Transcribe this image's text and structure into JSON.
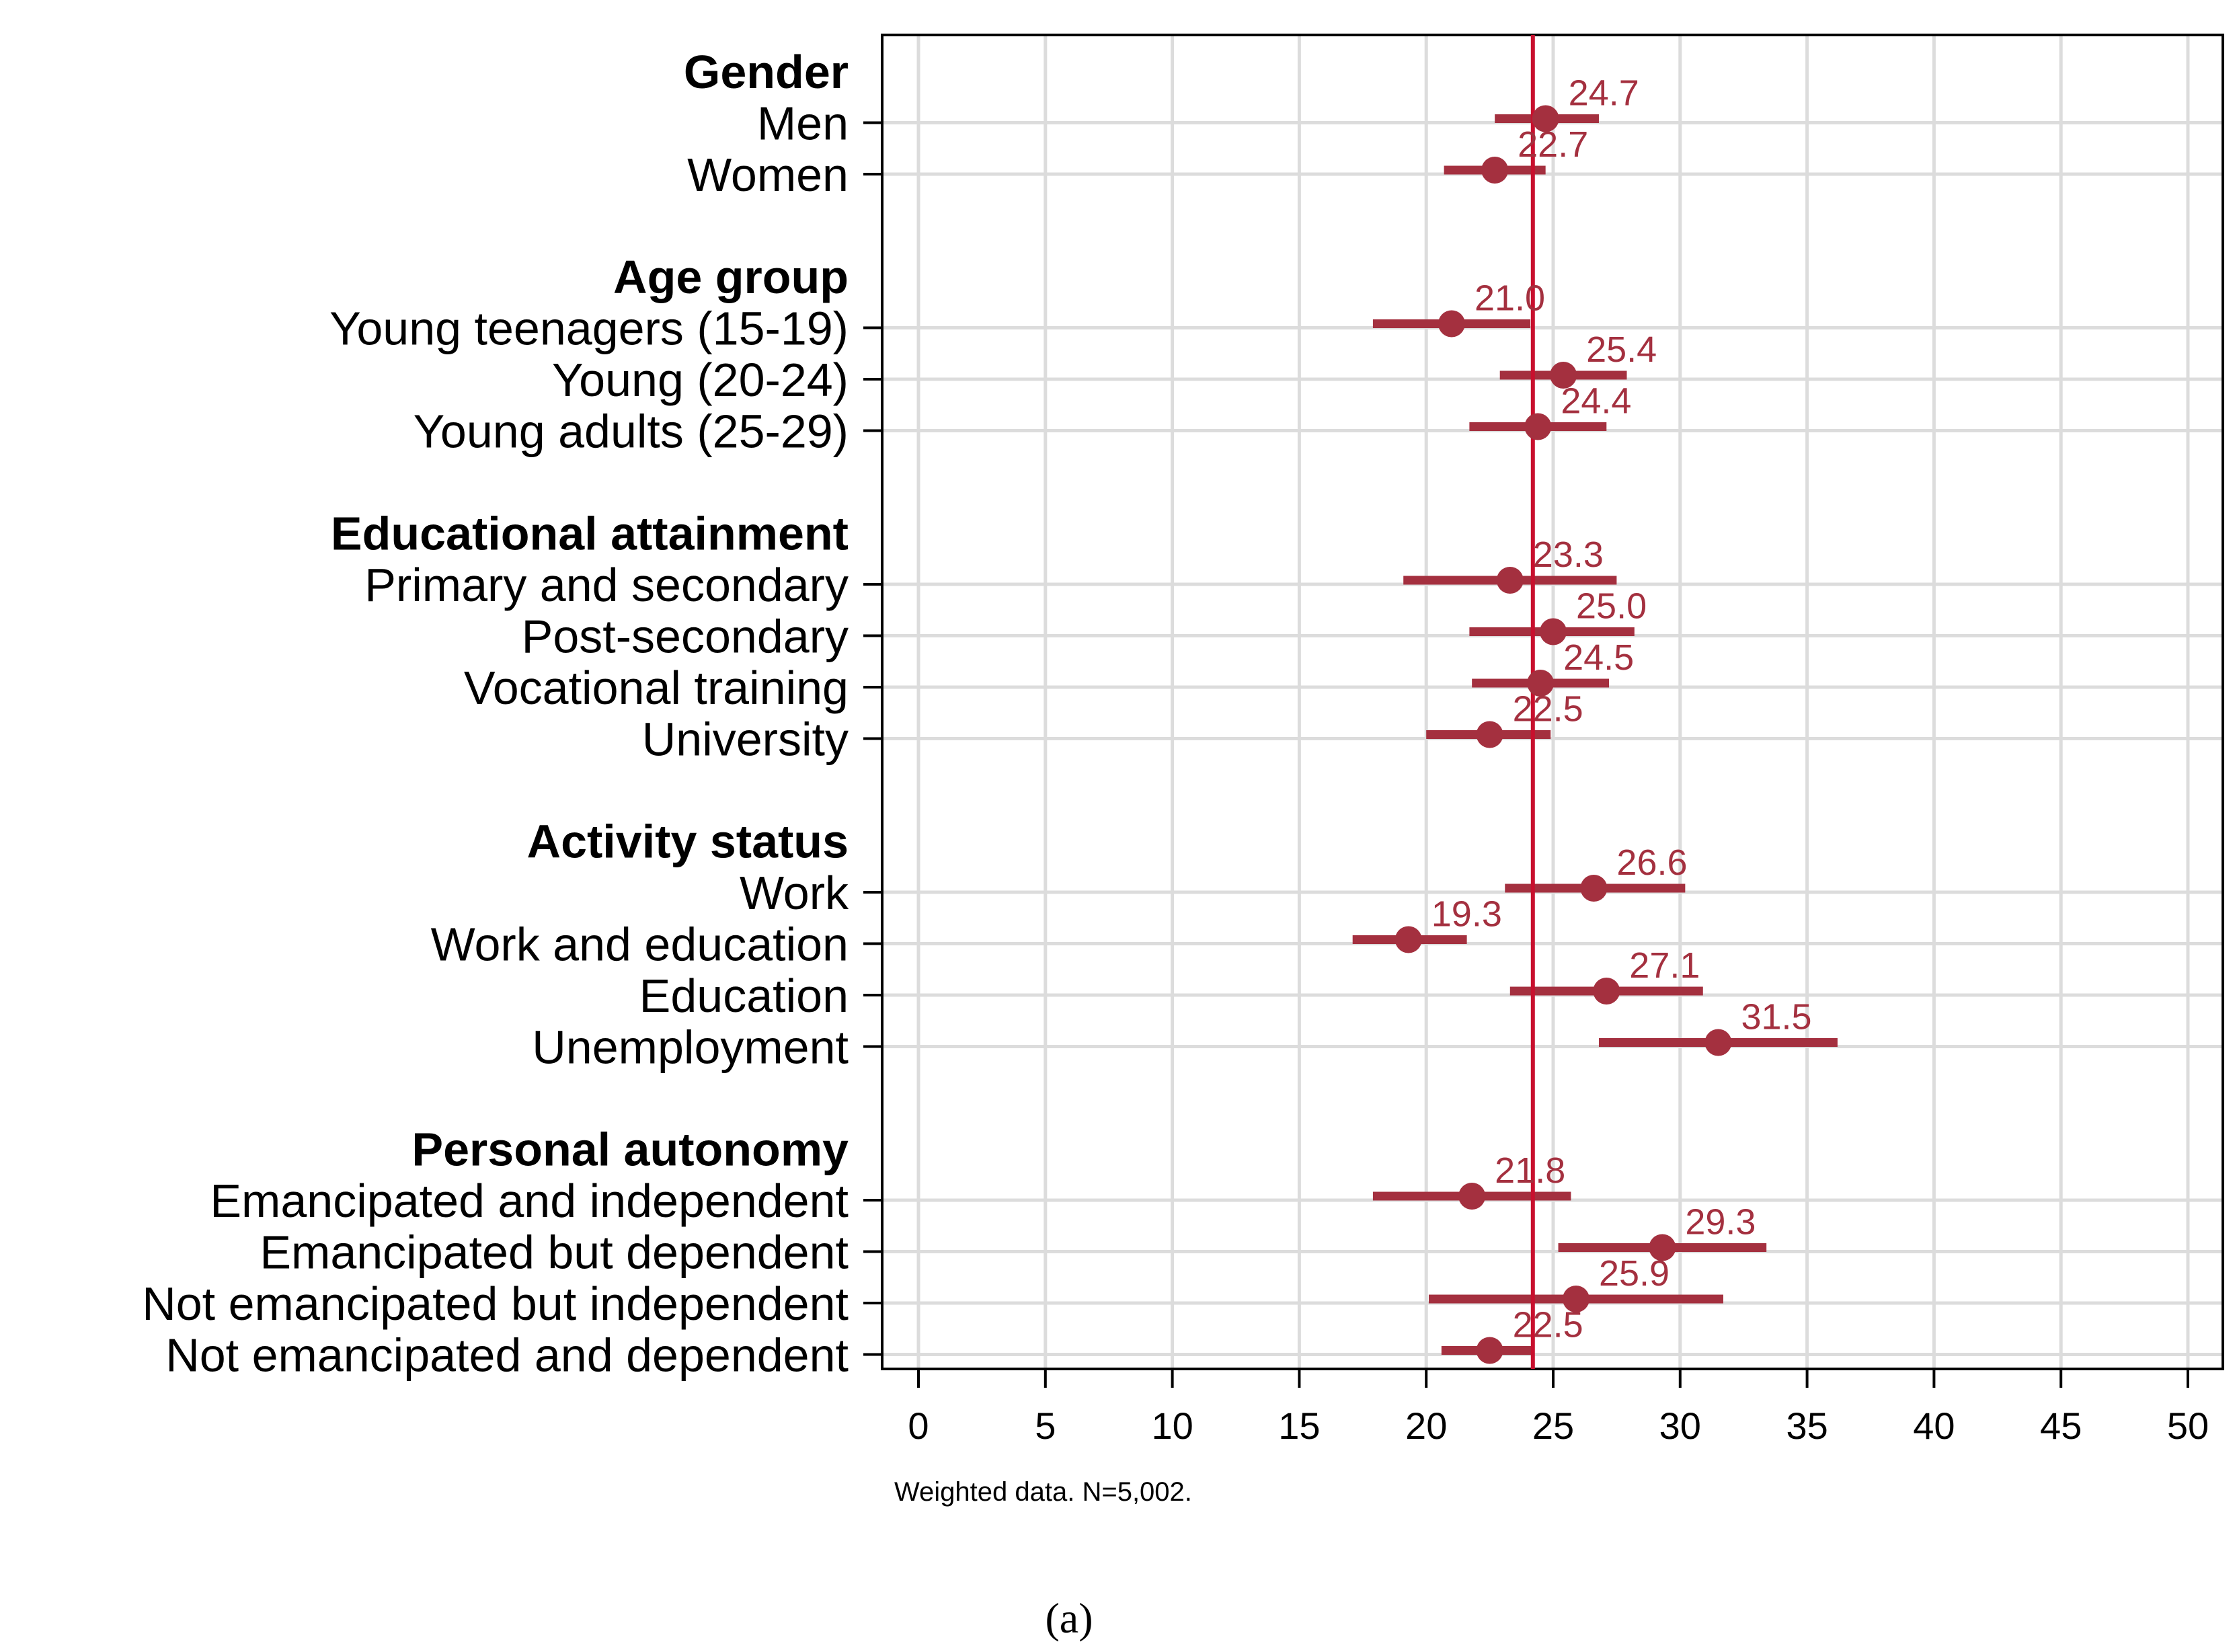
{
  "chart_data": {
    "type": "dot-errorbar",
    "xlim": [
      0,
      50
    ],
    "xticks": [
      0,
      5,
      10,
      15,
      20,
      25,
      30,
      35,
      40,
      45,
      50
    ],
    "reference_line": 24.2,
    "note": "Weighted data. N=5,002.",
    "panel_label": "(a)",
    "colors": {
      "series": "#a4303f",
      "reference": "#c8102e",
      "grid": "#dcdcdc",
      "axis": "#000000"
    },
    "groups": [
      {
        "title": "Gender",
        "items": [
          {
            "label": "Men",
            "value": 24.7,
            "low": 22.7,
            "high": 26.8,
            "value_label": "24.7"
          },
          {
            "label": "Women",
            "value": 22.7,
            "low": 20.7,
            "high": 24.7,
            "value_label": "22.7"
          }
        ]
      },
      {
        "title": "Age group",
        "items": [
          {
            "label": "Young teenagers (15-19)",
            "value": 21.0,
            "low": 17.9,
            "high": 24.1,
            "value_label": "21.0"
          },
          {
            "label": "Young (20-24)",
            "value": 25.4,
            "low": 22.9,
            "high": 27.9,
            "value_label": "25.4"
          },
          {
            "label": "Young adults (25-29)",
            "value": 24.4,
            "low": 21.7,
            "high": 27.1,
            "value_label": "24.4"
          }
        ]
      },
      {
        "title": "Educational attainment",
        "items": [
          {
            "label": "Primary and secondary",
            "value": 23.3,
            "low": 19.1,
            "high": 27.5,
            "value_label": "23.3"
          },
          {
            "label": "Post-secondary",
            "value": 25.0,
            "low": 21.7,
            "high": 28.2,
            "value_label": "25.0"
          },
          {
            "label": "Vocational training",
            "value": 24.5,
            "low": 21.8,
            "high": 27.2,
            "value_label": "24.5"
          },
          {
            "label": "University",
            "value": 22.5,
            "low": 20.0,
            "high": 24.9,
            "value_label": "22.5"
          }
        ]
      },
      {
        "title": "Activity status",
        "items": [
          {
            "label": "Work",
            "value": 26.6,
            "low": 23.1,
            "high": 30.2,
            "value_label": "26.6"
          },
          {
            "label": "Work and education",
            "value": 19.3,
            "low": 17.1,
            "high": 21.6,
            "value_label": "19.3"
          },
          {
            "label": "Education",
            "value": 27.1,
            "low": 23.3,
            "high": 30.9,
            "value_label": "27.1"
          },
          {
            "label": "Unemployment",
            "value": 31.5,
            "low": 26.8,
            "high": 36.2,
            "value_label": "31.5"
          }
        ]
      },
      {
        "title": "Personal autonomy",
        "items": [
          {
            "label": "Emancipated and independent",
            "value": 21.8,
            "low": 17.9,
            "high": 25.7,
            "value_label": "21.8"
          },
          {
            "label": "Emancipated but dependent",
            "value": 29.3,
            "low": 25.2,
            "high": 33.4,
            "value_label": "29.3"
          },
          {
            "label": "Not emancipated but independent",
            "value": 25.9,
            "low": 20.1,
            "high": 31.7,
            "value_label": "25.9"
          },
          {
            "label": "Not emancipated and dependent",
            "value": 22.5,
            "low": 20.6,
            "high": 24.2,
            "value_label": "22.5"
          }
        ]
      }
    ]
  }
}
